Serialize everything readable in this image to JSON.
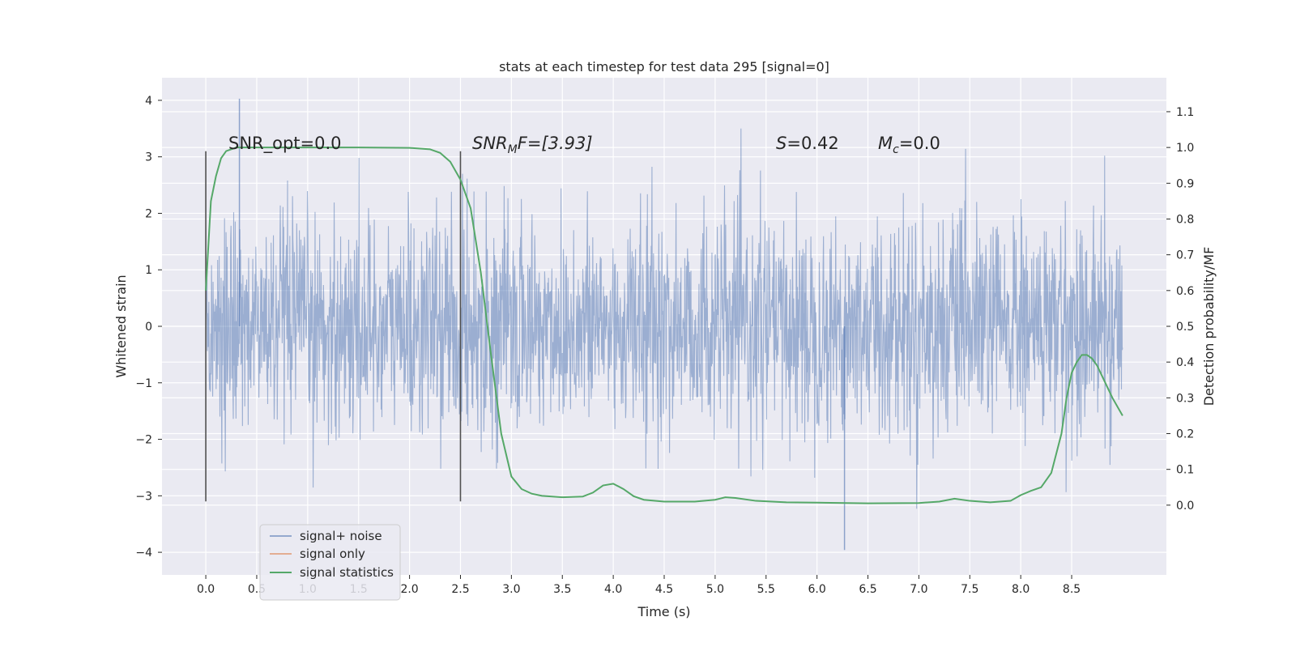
{
  "chart_data": {
    "type": "line",
    "title": "stats at each timestep for test data 295 [signal=0]",
    "xlabel": "Time (s)",
    "ylabel": "Whitened strain",
    "ylabel_right": "Detection probability/MF",
    "xlim": [
      -0.43,
      9.43
    ],
    "ylim": [
      -4.4,
      4.4
    ],
    "ylim_right": [
      -0.195,
      1.195
    ],
    "x_ticks": [
      "0.0",
      "0.5",
      "1.0",
      "1.5",
      "2.0",
      "2.5",
      "3.0",
      "3.5",
      "4.0",
      "4.5",
      "5.0",
      "5.5",
      "6.0",
      "6.5",
      "7.0",
      "7.5",
      "8.0",
      "8.5"
    ],
    "y_ticks": [
      "4",
      "3",
      "2",
      "1",
      "0",
      "−1",
      "−2",
      "−3",
      "−4"
    ],
    "y_right_ticks": [
      "1.1",
      "1.0",
      "0.9",
      "0.8",
      "0.7",
      "0.6",
      "0.5",
      "0.4",
      "0.3",
      "0.2",
      "0.1",
      "0.0"
    ],
    "annotations": {
      "snr_opt": "SNR_opt=0.0",
      "snr_mf_base": "SNR",
      "snr_mf_sub": "M",
      "snr_mf_rest": "F=[3.93]",
      "s_italic": "S",
      "s_value": "=0.42",
      "mc_base": "M",
      "mc_sub": "c",
      "mc_value": "=0.0"
    },
    "legend_position": "lower-left",
    "series": [
      {
        "name": "signal+ noise",
        "color": "#4c72b0",
        "opacity": 0.5,
        "description_range": "noise envelope approx. -3.5 to 4.0, mostly within ±2",
        "x_range": [
          0.0,
          9.0
        ],
        "approx_extremes": {
          "max": 4.03,
          "min": -3.96
        }
      },
      {
        "name": "signal only",
        "color": "#dd8452",
        "x": [],
        "y": []
      },
      {
        "name": "signal statistics",
        "color": "#55a868",
        "x": [
          0.0,
          0.05,
          0.1,
          0.15,
          0.2,
          0.3,
          0.5,
          1.0,
          1.5,
          2.0,
          2.2,
          2.3,
          2.4,
          2.5,
          2.6,
          2.7,
          2.8,
          2.9,
          3.0,
          3.1,
          3.2,
          3.3,
          3.5,
          3.7,
          3.8,
          3.9,
          4.0,
          4.1,
          4.2,
          4.3,
          4.5,
          4.8,
          5.0,
          5.1,
          5.2,
          5.4,
          5.7,
          6.0,
          6.5,
          7.0,
          7.2,
          7.35,
          7.5,
          7.7,
          7.9,
          8.0,
          8.1,
          8.2,
          8.3,
          8.4,
          8.45,
          8.5,
          8.55,
          8.6,
          8.65,
          8.7,
          8.75,
          8.8,
          8.9,
          9.0
        ],
        "y": [
          0.6,
          0.85,
          0.92,
          0.97,
          0.99,
          1.0,
          1.0,
          1.0,
          1.0,
          0.999,
          0.995,
          0.985,
          0.96,
          0.91,
          0.83,
          0.65,
          0.42,
          0.2,
          0.08,
          0.045,
          0.032,
          0.026,
          0.022,
          0.024,
          0.035,
          0.055,
          0.06,
          0.045,
          0.025,
          0.015,
          0.01,
          0.01,
          0.015,
          0.022,
          0.02,
          0.012,
          0.008,
          0.007,
          0.005,
          0.006,
          0.01,
          0.018,
          0.012,
          0.008,
          0.012,
          0.028,
          0.04,
          0.05,
          0.09,
          0.2,
          0.3,
          0.37,
          0.4,
          0.42,
          0.42,
          0.41,
          0.39,
          0.36,
          0.3,
          0.25
        ]
      }
    ],
    "vertical_lines": [
      {
        "x": 0.0,
        "ymin": -3.1,
        "ymax": 3.1,
        "color": "#505050"
      },
      {
        "x": 2.5,
        "ymin": -3.1,
        "ymax": 3.1,
        "color": "#505050"
      }
    ]
  }
}
